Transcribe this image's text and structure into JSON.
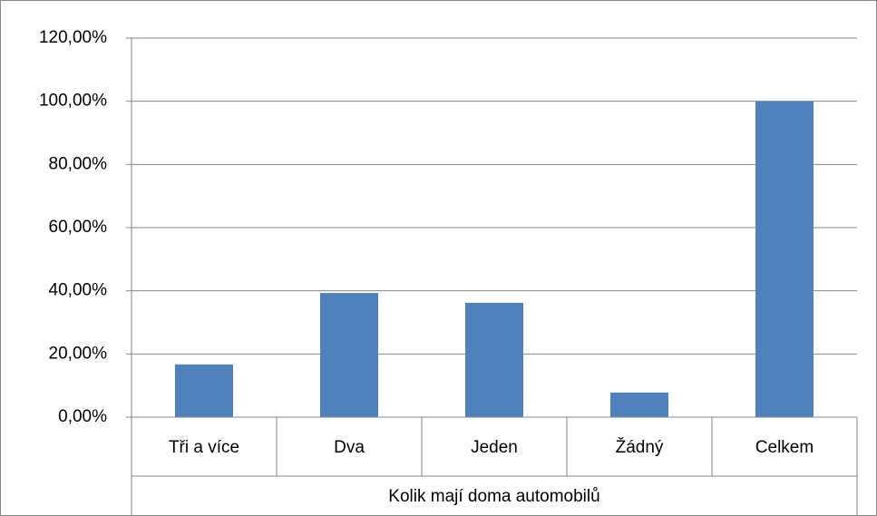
{
  "chart_data": {
    "type": "bar",
    "categories": [
      "Tři a více",
      "Dva",
      "Jeden",
      "Žádný",
      "Celkem"
    ],
    "values": [
      16.7,
      39.3,
      36.2,
      7.8,
      100
    ],
    "color": "#4f81bd",
    "xlabel": "Kolik mají doma automobilů",
    "ylim": [
      0,
      120
    ],
    "yticks": [
      {
        "value": 0,
        "label": "0,00%"
      },
      {
        "value": 20,
        "label": "20,00%"
      },
      {
        "value": 40,
        "label": "40,00%"
      },
      {
        "value": 60,
        "label": "60,00%"
      },
      {
        "value": 80,
        "label": "80,00%"
      },
      {
        "value": 100,
        "label": "100,00%"
      },
      {
        "value": 120,
        "label": "120,00%"
      }
    ],
    "grid": true
  }
}
